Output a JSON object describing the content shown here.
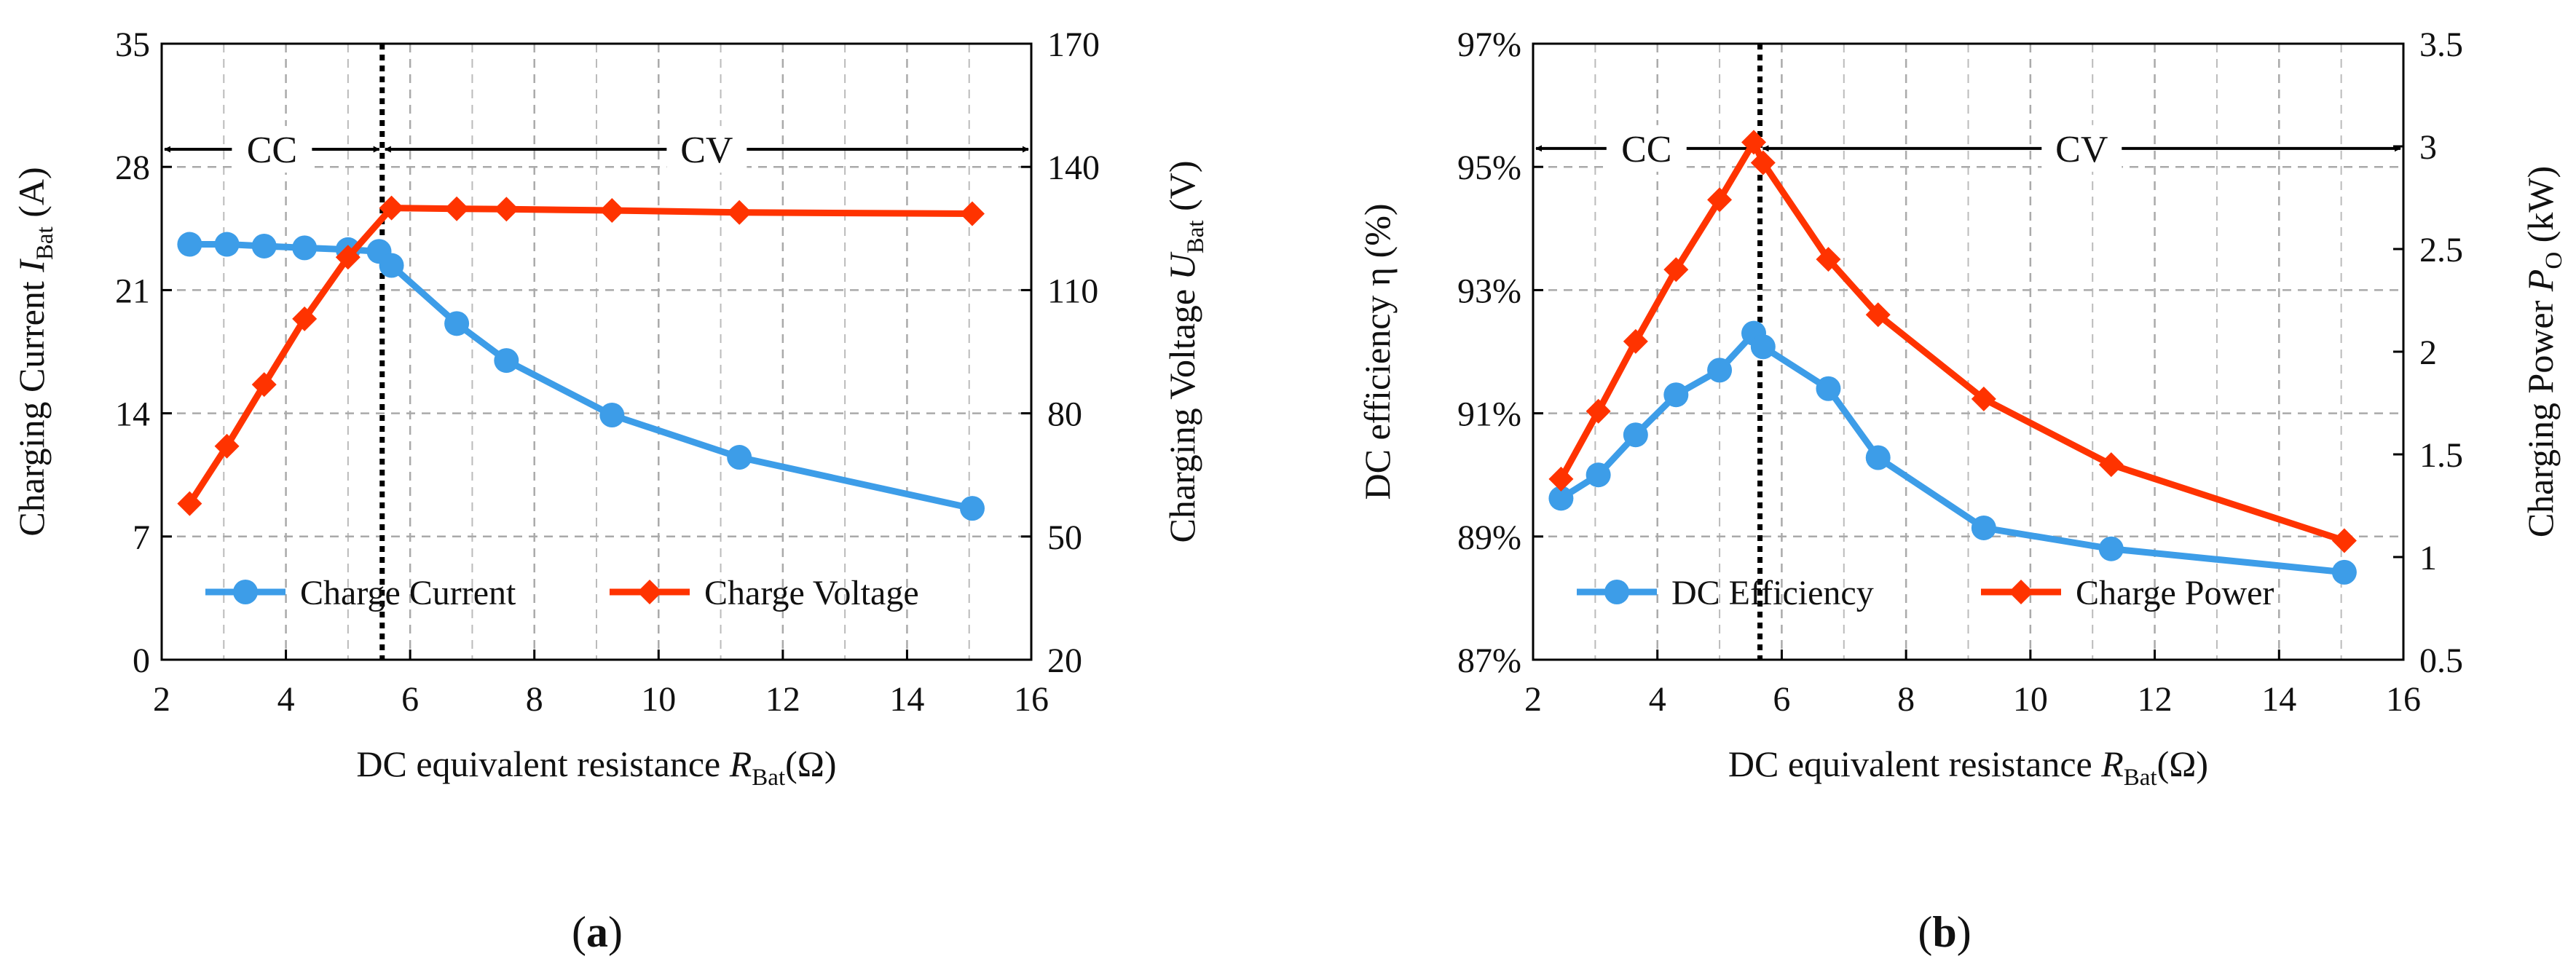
{
  "chart_data": [
    {
      "type": "line",
      "panel_label": "(a)",
      "panel_letter": "a",
      "xlabel": "DC equivalent  resistance ",
      "xlabel_symbol": "R",
      "xlabel_sub": "Bat",
      "xlabel_unit": "(Ω)",
      "ylabel_left": "Charging  Current ",
      "ylabel_left_symbol": "I",
      "ylabel_left_sub": "Bat",
      "ylabel_left_unit": " (A)",
      "ylabel_right": "Charging  Voltage ",
      "ylabel_right_symbol": "U",
      "ylabel_right_sub": "Bat",
      "ylabel_right_unit": " (V)",
      "xlim": [
        2,
        16
      ],
      "ylim_left": [
        0,
        35
      ],
      "ylim_right": [
        20,
        170
      ],
      "x_ticks": [
        "2",
        "4",
        "6",
        "8",
        "10",
        "12",
        "14",
        "16"
      ],
      "x_tick_values": [
        2,
        4,
        6,
        8,
        10,
        12,
        14,
        16
      ],
      "y_left_ticks": [
        "0",
        "7",
        "14",
        "21",
        "28",
        "35"
      ],
      "y_left_tick_values": [
        0,
        7,
        14,
        21,
        28,
        35
      ],
      "y_right_ticks": [
        "20",
        "50",
        "80",
        "110",
        "140",
        "170"
      ],
      "y_right_tick_values": [
        20,
        50,
        80,
        110,
        140,
        170
      ],
      "cc_cv_boundary_x": 5.55,
      "arrow_y_left": 29,
      "region_labels": [
        "CC",
        "CV"
      ],
      "series": [
        {
          "name": "Charge Current",
          "axis": "left",
          "color": "#3d9de8",
          "marker": "circle",
          "x": [
            2.45,
            3.05,
            3.65,
            4.3,
            5.0,
            5.5,
            5.7,
            6.75,
            7.55,
            9.25,
            11.3,
            15.05
          ],
          "y": [
            23.6,
            23.6,
            23.5,
            23.4,
            23.3,
            23.2,
            22.4,
            19.1,
            17.0,
            13.9,
            11.5,
            8.6
          ]
        },
        {
          "name": "Charge Voltage",
          "axis": "right",
          "color": "#ff3300",
          "marker": "diamond",
          "x": [
            2.45,
            3.05,
            3.65,
            4.3,
            5.0,
            5.7,
            6.75,
            7.55,
            9.25,
            11.3,
            15.05
          ],
          "y": [
            58,
            72,
            87,
            103,
            118,
            130,
            129.8,
            129.7,
            129.4,
            128.9,
            128.6
          ]
        }
      ]
    },
    {
      "type": "line",
      "panel_label": "(b)",
      "panel_letter": "b",
      "xlabel": "DC equivalent  resistance ",
      "xlabel_symbol": "R",
      "xlabel_sub": "Bat",
      "xlabel_unit": "(Ω)",
      "ylabel_left": "DC efficiency η (%)",
      "ylabel_right": "Charging  Power ",
      "ylabel_right_symbol": "P",
      "ylabel_right_sub": "O",
      "ylabel_right_unit": " (kW)",
      "xlim": [
        2,
        16
      ],
      "ylim_left": [
        87,
        97
      ],
      "ylim_right": [
        0.5,
        3.5
      ],
      "x_ticks": [
        "2",
        "4",
        "6",
        "8",
        "10",
        "12",
        "14",
        "16"
      ],
      "x_tick_values": [
        2,
        4,
        6,
        8,
        10,
        12,
        14,
        16
      ],
      "y_left_ticks": [
        "87%",
        "89%",
        "91%",
        "93%",
        "95%",
        "97%"
      ],
      "y_left_tick_values": [
        87,
        89,
        91,
        93,
        95,
        97
      ],
      "y_right_ticks": [
        "0.5",
        "1",
        "1.5",
        "2",
        "2.5",
        "3",
        "3.5"
      ],
      "y_right_tick_values": [
        0.5,
        1,
        1.5,
        2,
        2.5,
        3,
        3.5
      ],
      "cc_cv_boundary_x": 5.65,
      "arrow_y_left": 95.3,
      "region_labels": [
        "CC",
        "CV"
      ],
      "series": [
        {
          "name": "DC Efficiency",
          "axis": "left",
          "color": "#3d9de8",
          "marker": "circle",
          "x": [
            2.45,
            3.05,
            3.65,
            4.3,
            5.0,
            5.55,
            5.7,
            6.75,
            7.55,
            9.25,
            11.3,
            15.05
          ],
          "y": [
            89.62,
            90.0,
            90.65,
            91.3,
            91.7,
            92.3,
            92.08,
            91.4,
            90.28,
            89.14,
            88.8,
            88.42
          ]
        },
        {
          "name": "Charge Power",
          "axis": "right",
          "color": "#ff3300",
          "marker": "diamond",
          "x": [
            2.45,
            3.05,
            3.65,
            4.3,
            5.0,
            5.55,
            5.7,
            6.75,
            7.55,
            9.25,
            11.3,
            15.05
          ],
          "y": [
            1.38,
            1.71,
            2.05,
            2.4,
            2.74,
            3.02,
            2.92,
            2.45,
            2.18,
            1.77,
            1.45,
            1.08
          ]
        }
      ]
    }
  ]
}
